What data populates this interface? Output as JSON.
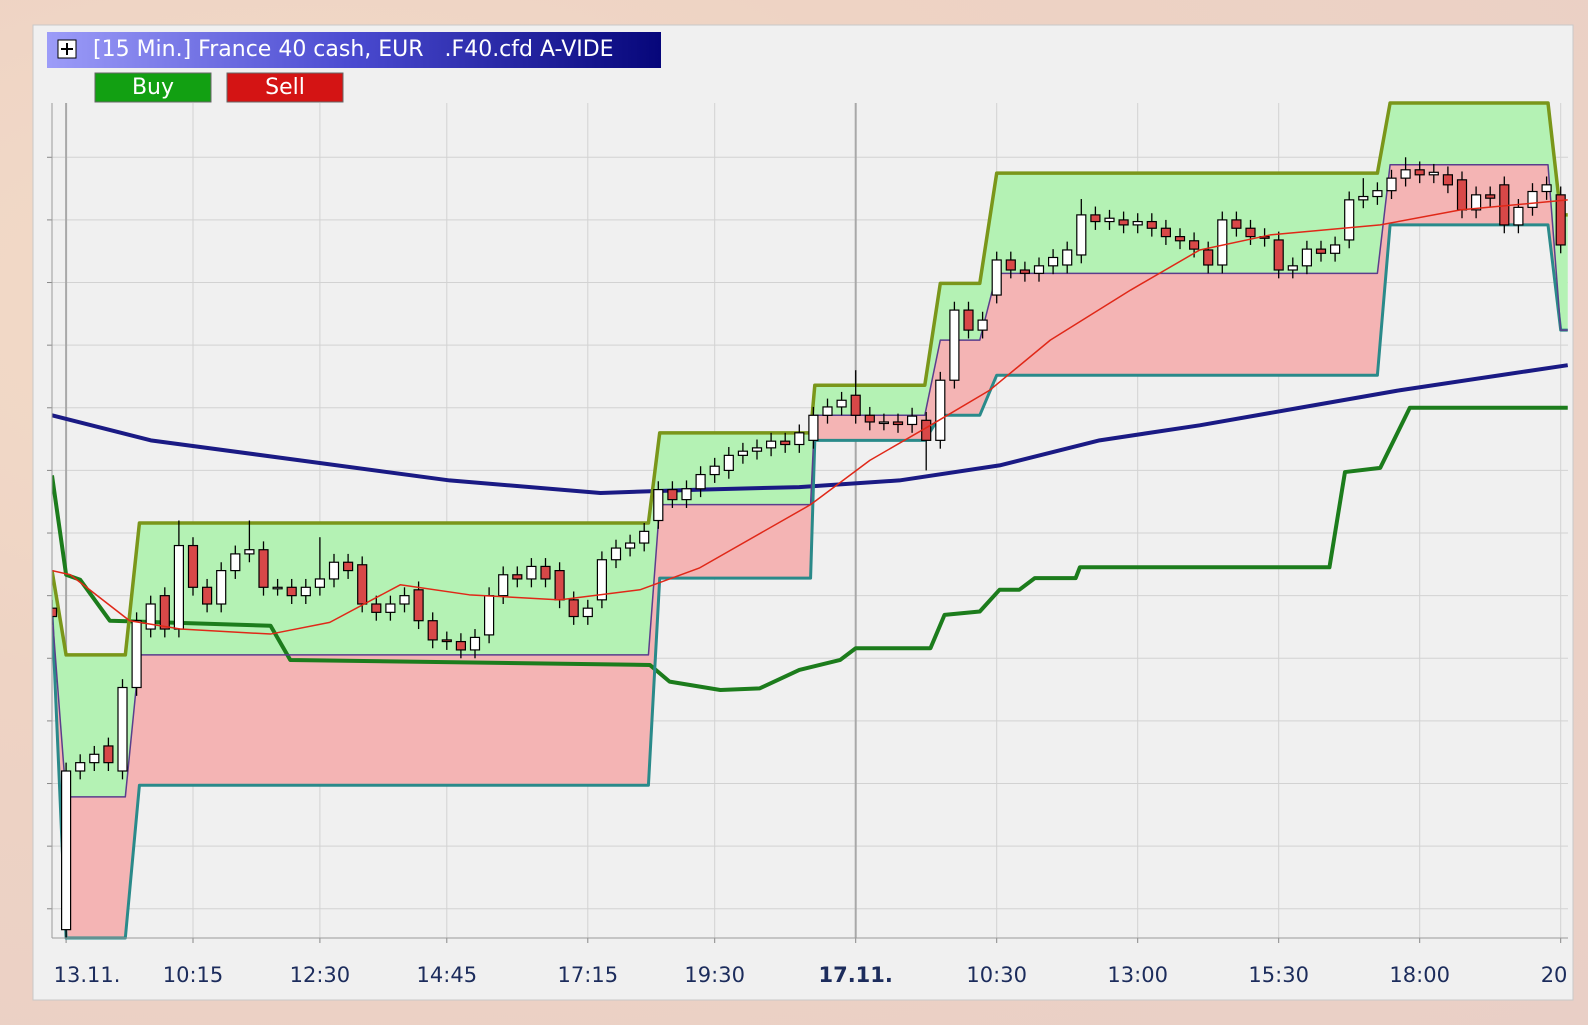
{
  "chart_data": {
    "type": "candlestick",
    "title": "[15 Min.] France 40 cash, EUR   .F40.cfd A-VIDE",
    "buttons": [
      {
        "label": "Buy",
        "color": "#12a012"
      },
      {
        "label": "Sell",
        "color": "#d41414"
      }
    ],
    "xlim": [
      0,
      108
    ],
    "ylim": [
      0,
      100
    ],
    "xticks": [
      {
        "value": 1,
        "label": "13.11.",
        "bold": false
      },
      {
        "value": 10,
        "label": "10:15",
        "bold": false
      },
      {
        "value": 19,
        "label": "12:30",
        "bold": false
      },
      {
        "value": 28,
        "label": "14:45",
        "bold": false
      },
      {
        "value": 38,
        "label": "17:15",
        "bold": false
      },
      {
        "value": 47,
        "label": "19:30",
        "bold": false
      },
      {
        "value": 57,
        "label": "17.11.",
        "bold": true
      },
      {
        "value": 67,
        "label": "10:30",
        "bold": false
      },
      {
        "value": 77,
        "label": "13:00",
        "bold": false
      },
      {
        "value": 87,
        "label": "15:30",
        "bold": false
      },
      {
        "value": 97,
        "label": "18:00",
        "bold": false
      },
      {
        "value": 107,
        "label": "20",
        "bold": false
      }
    ],
    "ygrid": [
      3.5,
      11,
      18.5,
      26,
      33.5,
      41,
      48.5,
      56,
      63.5,
      71,
      78.5,
      86,
      93.5
    ],
    "grid": true,
    "up_color": "#ffffff",
    "down_color": "#d84848",
    "candles": {
      "open": [
        39.5,
        1,
        20,
        21,
        23,
        20,
        30,
        37,
        41,
        37,
        47,
        42,
        40,
        44,
        46,
        46.5,
        42,
        42,
        41,
        42,
        43,
        45,
        44.7,
        40,
        39,
        40,
        41.7,
        38,
        35.7,
        35.5,
        34.5,
        36.3,
        41,
        43.5,
        43,
        44.5,
        44,
        40.5,
        38.5,
        40.5,
        45.3,
        46.7,
        47.3,
        50,
        53.7,
        52.5,
        53.8,
        55.5,
        56,
        57.8,
        58.3,
        58.7,
        59.5,
        59.1,
        59.6,
        62.6,
        63.6,
        65,
        62.6,
        61.8,
        61.8,
        61.5,
        62,
        59.6,
        66.8,
        75.2,
        72.8,
        77,
        81.2,
        80,
        79.6,
        80.5,
        80.6,
        81.8,
        86.6,
        85.8,
        86,
        85.4,
        85.8,
        85,
        84,
        83.5,
        82.4,
        80.6,
        86,
        85,
        84,
        83.6,
        80,
        80.5,
        82.5,
        82,
        83.6,
        88.4,
        88.8,
        89.5,
        91,
        92,
        91.4,
        91.4,
        90.8,
        87.2,
        89,
        90.2,
        85.4,
        87.5,
        89.4,
        89,
        82.4
      ],
      "close": [
        38.5,
        20,
        21,
        22,
        21,
        30,
        38,
        40,
        37,
        47,
        42,
        40,
        44,
        46,
        46.5,
        42,
        42,
        41,
        42,
        43,
        45,
        44,
        40,
        39,
        40,
        41,
        38,
        35.7,
        35.5,
        34.5,
        36,
        41,
        43.5,
        43,
        44.5,
        43,
        40.5,
        38.5,
        39.5,
        45.3,
        46.7,
        47.3,
        48.7,
        53.7,
        52.5,
        53.8,
        55.5,
        56.5,
        57.8,
        58.3,
        58.7,
        59.5,
        59.1,
        60.5,
        62.6,
        63.6,
        64.4,
        62.6,
        61.8,
        61.8,
        61.5,
        62.5,
        59.6,
        66.8,
        75.2,
        72.8,
        74,
        81.2,
        80,
        79.6,
        80.5,
        81.5,
        82.4,
        86.6,
        85.8,
        86.2,
        85.4,
        85.8,
        85,
        84,
        83.5,
        82.5,
        80.6,
        86,
        85,
        84,
        83.8,
        80,
        80.5,
        82.5,
        82,
        83,
        88.4,
        88.8,
        89.5,
        91,
        92,
        91.4,
        91.7,
        90.2,
        87.2,
        89,
        88.6,
        85.4,
        87.5,
        89.4,
        90.2,
        83,
        77.6
      ],
      "high": [
        40.5,
        21,
        22,
        23,
        24,
        31,
        39,
        41,
        42,
        50,
        48,
        43,
        45,
        47,
        50,
        47.5,
        43,
        43,
        43,
        48,
        46,
        46,
        45.7,
        41,
        41,
        42,
        42.7,
        39,
        36.7,
        36.5,
        37,
        42,
        44.5,
        44.5,
        45.5,
        45.5,
        45,
        41.5,
        40.5,
        46.3,
        47.7,
        48.3,
        49.7,
        54.7,
        54.7,
        54.8,
        56.5,
        57.5,
        58.8,
        59.3,
        59.7,
        60.5,
        60.5,
        61.5,
        63.6,
        64.6,
        65.4,
        68,
        63.6,
        62.8,
        62.8,
        63.5,
        63,
        67.8,
        76.2,
        76.2,
        75,
        82.2,
        82.2,
        81,
        81.5,
        82.5,
        83.4,
        88.5,
        87.6,
        87.2,
        87,
        86.8,
        86.8,
        86,
        85,
        84.5,
        83.4,
        87,
        87,
        86,
        85,
        84.6,
        81.5,
        83.5,
        83.5,
        84,
        89.4,
        91,
        90.5,
        92,
        93.5,
        93,
        92.7,
        92.4,
        91.8,
        90,
        90,
        91.2,
        88.5,
        90.4,
        91.2,
        90,
        83.4
      ],
      "low": [
        37.5,
        0,
        19,
        20,
        20,
        19,
        29,
        36,
        36,
        36,
        41,
        39,
        39,
        43,
        45,
        41,
        41,
        40,
        40,
        41,
        42,
        43,
        39,
        38,
        38,
        39,
        37,
        34.7,
        34.5,
        33.5,
        33.5,
        35.3,
        40,
        42,
        42,
        42,
        39.5,
        37.5,
        37.5,
        39.5,
        44.3,
        45.7,
        46.3,
        49,
        51.5,
        51.5,
        52.8,
        54.5,
        55,
        56.8,
        57.3,
        57.7,
        58.1,
        58.1,
        58.6,
        61.6,
        62.6,
        61.6,
        60.8,
        60.8,
        60.5,
        60.5,
        56,
        58.6,
        65.8,
        71.8,
        71.8,
        76,
        79,
        78.6,
        78.6,
        79.5,
        79.6,
        80.8,
        84.8,
        84.8,
        84.4,
        84.4,
        84,
        83,
        82.5,
        81.5,
        79.6,
        79.6,
        84,
        83,
        82.8,
        79,
        79,
        79.5,
        81,
        81,
        82.6,
        87.4,
        87.8,
        88.5,
        90,
        90.4,
        90.4,
        89.2,
        86.2,
        86.2,
        87.6,
        84.4,
        84.4,
        86.5,
        88.4,
        82,
        76
      ]
    },
    "channel": {
      "x": [
        0,
        1,
        5.2,
        6.2,
        42.3,
        43.1,
        53.8,
        54.1,
        61.9,
        63,
        65.8,
        67,
        94,
        94.9,
        106.1,
        107,
        107.5
      ],
      "upper": [
        44,
        33.9,
        33.9,
        49.7,
        49.7,
        60.5,
        60.5,
        66.2,
        66.2,
        78.4,
        78.4,
        91.6,
        91.6,
        100,
        100,
        86.6,
        86.6
      ],
      "middle": [
        39,
        16.9,
        16.9,
        33.9,
        33.9,
        51.9,
        51.9,
        62.6,
        62.6,
        71.6,
        71.6,
        79.6,
        79.6,
        92.6,
        92.6,
        72.8,
        72.8
      ],
      "lower": [
        39,
        0,
        0,
        18.3,
        18.3,
        43.1,
        43.1,
        59.6,
        59.6,
        62.6,
        62.6,
        67.4,
        67.4,
        85.4,
        85.4,
        72.8,
        72.8
      ],
      "upper_color": "#7a961a",
      "middle_color": "#5a3e8c",
      "lower_color": "#2a8a8a",
      "fill_up": "#b4f2b4",
      "fill_down": "#f4b4b4"
    },
    "lines": [
      {
        "color": "#1c7c1c",
        "width": 4,
        "x": [
          0,
          1,
          2,
          4.1,
          15.5,
          16.9,
          42.4,
          43.8,
          47.4,
          50.2,
          53,
          55.9,
          57,
          62.3,
          63.3,
          65.8,
          67.2,
          68.6,
          69.7,
          72.6,
          72.9,
          90.6,
          91.7,
          94.2,
          96.3,
          107.5
        ],
        "values": [
          55.4,
          43.5,
          42.9,
          38,
          37.4,
          33.3,
          32.7,
          30.7,
          29.7,
          29.9,
          32.1,
          33.3,
          34.7,
          34.7,
          38.7,
          39.1,
          41.7,
          41.7,
          43.1,
          43.1,
          44.4,
          44.4,
          55.8,
          56.3,
          63.5,
          63.5
        ]
      },
      {
        "color": "#1a1a84",
        "width": 4,
        "x": [
          0,
          7,
          17.6,
          28.2,
          38.9,
          46,
          53,
          60.1,
          67.2,
          74.3,
          81.4,
          88.5,
          95.6,
          102.7,
          107.5
        ],
        "values": [
          62.6,
          59.6,
          57.2,
          54.8,
          53.3,
          53.7,
          54,
          54.8,
          56.6,
          59.6,
          61.4,
          63.5,
          65.6,
          67.4,
          68.6
        ]
      },
      {
        "color": "#e02818",
        "width": 1.5,
        "x": [
          0,
          1.3,
          5.5,
          9.1,
          15.5,
          19.7,
          24.7,
          29.6,
          36,
          41.7,
          45.9,
          53.8,
          58,
          62.3,
          66.5,
          70.8,
          76.5,
          81.4,
          86.4,
          94.2,
          99.9,
          107.5
        ],
        "values": [
          44,
          43.5,
          38,
          37,
          36.4,
          37.8,
          42.3,
          41.1,
          40.5,
          41.7,
          44.3,
          51.9,
          57.2,
          61.4,
          65.6,
          71.6,
          77.6,
          82.4,
          84.2,
          85.4,
          87.2,
          88.4
        ]
      }
    ]
  }
}
